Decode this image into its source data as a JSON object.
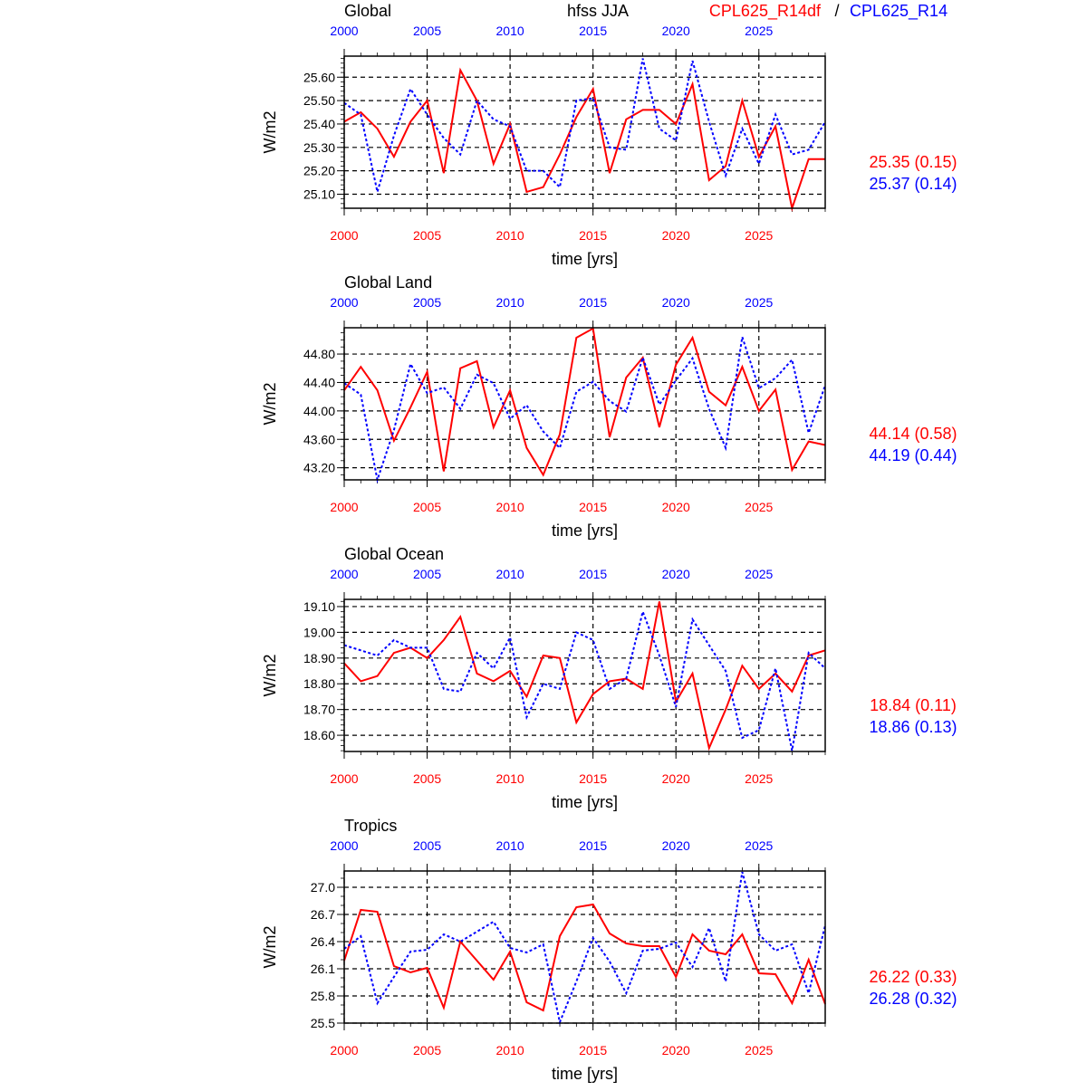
{
  "header": {
    "variable": "hfss JJA",
    "legend_red": "CPL625_R14df",
    "legend_sep": "/",
    "legend_blue": "CPL625_R14"
  },
  "colors": {
    "red": "#ff0000",
    "blue": "#0000ff",
    "grid": "#000000"
  },
  "chart_data": [
    {
      "type": "line",
      "title": "Global",
      "xlabel": "time [yrs]",
      "ylabel": "W/m2",
      "xlim": [
        2000,
        2029
      ],
      "ylim": [
        25.04,
        25.69
      ],
      "xticks": [
        2000,
        2005,
        2010,
        2015,
        2020,
        2025
      ],
      "xtick_labels": [
        "2000",
        "2005",
        "2010",
        "2015",
        "2020",
        "2025"
      ],
      "yticks": [
        25.1,
        25.2,
        25.3,
        25.4,
        25.5,
        25.6
      ],
      "ytick_labels": [
        "25.10",
        "25.20",
        "25.30",
        "25.40",
        "25.50",
        "25.60"
      ],
      "yminor": 0.02,
      "grid": true,
      "stats": [
        "25.35 (0.15)",
        "25.37 (0.14)"
      ],
      "series": [
        {
          "name": "CPL625_R14df",
          "color": "red",
          "style": "solid",
          "values": [
            25.41,
            25.45,
            25.38,
            25.26,
            25.41,
            25.5,
            25.19,
            25.63,
            25.5,
            25.23,
            25.4,
            25.11,
            25.13,
            25.27,
            25.43,
            25.55,
            25.19,
            25.42,
            25.46,
            25.46,
            25.4,
            25.57,
            25.16,
            25.22,
            25.5,
            25.26,
            25.39,
            25.04,
            25.25,
            25.25
          ]
        },
        {
          "name": "CPL625_R14",
          "color": "blue",
          "style": "dashed",
          "values": [
            25.49,
            25.44,
            25.11,
            25.35,
            25.55,
            25.44,
            25.34,
            25.27,
            25.5,
            25.42,
            25.39,
            25.2,
            25.2,
            25.13,
            25.5,
            25.51,
            25.3,
            25.29,
            25.68,
            25.38,
            25.33,
            25.67,
            25.41,
            25.18,
            25.38,
            25.23,
            25.44,
            25.27,
            25.29,
            25.41
          ]
        }
      ]
    },
    {
      "type": "line",
      "title": "Global Land",
      "xlabel": "time [yrs]",
      "ylabel": "W/m2",
      "xlim": [
        2000,
        2029
      ],
      "ylim": [
        43.03,
        45.17
      ],
      "xticks": [
        2000,
        2005,
        2010,
        2015,
        2020,
        2025
      ],
      "xtick_labels": [
        "2000",
        "2005",
        "2010",
        "2015",
        "2020",
        "2025"
      ],
      "yticks": [
        43.2,
        43.6,
        44.0,
        44.4,
        44.8
      ],
      "ytick_labels": [
        "43.20",
        "43.60",
        "44.00",
        "44.40",
        "44.80"
      ],
      "yminor": 0.1,
      "grid": true,
      "stats": [
        "44.14 (0.58)",
        "44.19 (0.44)"
      ],
      "series": [
        {
          "name": "CPL625_R14df",
          "color": "red",
          "style": "solid",
          "values": [
            44.29,
            44.62,
            44.29,
            43.58,
            44.05,
            44.55,
            43.15,
            44.6,
            44.7,
            43.77,
            44.29,
            43.48,
            43.1,
            43.67,
            45.03,
            45.16,
            43.63,
            44.47,
            44.75,
            43.77,
            44.65,
            45.03,
            44.27,
            44.08,
            44.62,
            44.0,
            44.3,
            43.17,
            43.57,
            43.52
          ]
        },
        {
          "name": "CPL625_R14",
          "color": "blue",
          "style": "dashed",
          "values": [
            44.39,
            44.23,
            43.03,
            43.73,
            44.66,
            44.25,
            44.33,
            44.03,
            44.51,
            44.39,
            43.89,
            44.08,
            43.71,
            43.48,
            44.27,
            44.41,
            44.14,
            43.99,
            44.75,
            44.09,
            44.43,
            44.74,
            44.03,
            43.48,
            45.04,
            44.32,
            44.46,
            44.72,
            43.69,
            44.36
          ]
        }
      ]
    },
    {
      "type": "line",
      "title": "Global Ocean",
      "xlabel": "time [yrs]",
      "ylabel": "W/m2",
      "xlim": [
        2000,
        2029
      ],
      "ylim": [
        18.537,
        19.128
      ],
      "xticks": [
        2000,
        2005,
        2010,
        2015,
        2020,
        2025
      ],
      "xtick_labels": [
        "2000",
        "2005",
        "2010",
        "2015",
        "2020",
        "2025"
      ],
      "yticks": [
        18.6,
        18.7,
        18.8,
        18.9,
        19.0,
        19.1
      ],
      "ytick_labels": [
        "18.60",
        "18.70",
        "18.80",
        "18.90",
        "19.00",
        "19.10"
      ],
      "yminor": 0.02,
      "grid": true,
      "stats": [
        "18.84 (0.11)",
        "18.86 (0.13)"
      ],
      "series": [
        {
          "name": "CPL625_R14df",
          "color": "red",
          "style": "solid",
          "values": [
            18.88,
            18.81,
            18.83,
            18.92,
            18.94,
            18.9,
            18.97,
            19.06,
            18.84,
            18.81,
            18.85,
            18.75,
            18.91,
            18.9,
            18.65,
            18.76,
            18.81,
            18.82,
            18.78,
            19.12,
            18.73,
            18.84,
            18.55,
            18.7,
            18.87,
            18.78,
            18.84,
            18.77,
            18.91,
            18.93
          ]
        },
        {
          "name": "CPL625_R14",
          "color": "blue",
          "style": "dashed",
          "values": [
            18.95,
            18.93,
            18.91,
            18.97,
            18.94,
            18.94,
            18.78,
            18.77,
            18.92,
            18.86,
            18.98,
            18.67,
            18.8,
            18.78,
            19.0,
            18.97,
            18.78,
            18.82,
            19.08,
            18.91,
            18.71,
            19.05,
            18.95,
            18.85,
            18.59,
            18.62,
            18.86,
            18.54,
            18.92,
            18.86
          ]
        }
      ]
    },
    {
      "type": "line",
      "title": "Tropics",
      "xlabel": "time [yrs]",
      "ylabel": "W/m2",
      "xlim": [
        2000,
        2029
      ],
      "ylim": [
        25.5,
        27.18
      ],
      "xticks": [
        2000,
        2005,
        2010,
        2015,
        2020,
        2025
      ],
      "xtick_labels": [
        "2000",
        "2005",
        "2010",
        "2015",
        "2020",
        "2025"
      ],
      "yticks": [
        25.5,
        25.8,
        26.1,
        26.4,
        26.7,
        27.0
      ],
      "ytick_labels": [
        "25.5",
        "25.8",
        "26.1",
        "26.4",
        "26.7",
        "27.0"
      ],
      "yminor": 0.1,
      "grid": true,
      "stats": [
        "26.22 (0.33)",
        "26.28 (0.32)"
      ],
      "series": [
        {
          "name": "CPL625_R14df",
          "color": "red",
          "style": "solid",
          "values": [
            26.19,
            26.75,
            26.73,
            26.13,
            26.06,
            26.11,
            25.67,
            26.4,
            26.19,
            25.98,
            26.29,
            25.73,
            25.64,
            26.46,
            26.78,
            26.81,
            26.49,
            26.38,
            26.35,
            26.35,
            26.01,
            26.48,
            26.3,
            26.26,
            26.48,
            26.05,
            26.04,
            25.72,
            26.2,
            25.71
          ]
        },
        {
          "name": "CPL625_R14",
          "color": "blue",
          "style": "dashed",
          "values": [
            26.32,
            26.46,
            25.72,
            26.01,
            26.29,
            26.31,
            26.48,
            26.4,
            26.51,
            26.62,
            26.33,
            26.28,
            26.37,
            25.51,
            25.96,
            26.44,
            26.18,
            25.83,
            26.3,
            26.32,
            26.39,
            26.12,
            26.55,
            25.96,
            27.17,
            26.48,
            26.3,
            26.37,
            25.83,
            26.58
          ]
        }
      ]
    }
  ]
}
